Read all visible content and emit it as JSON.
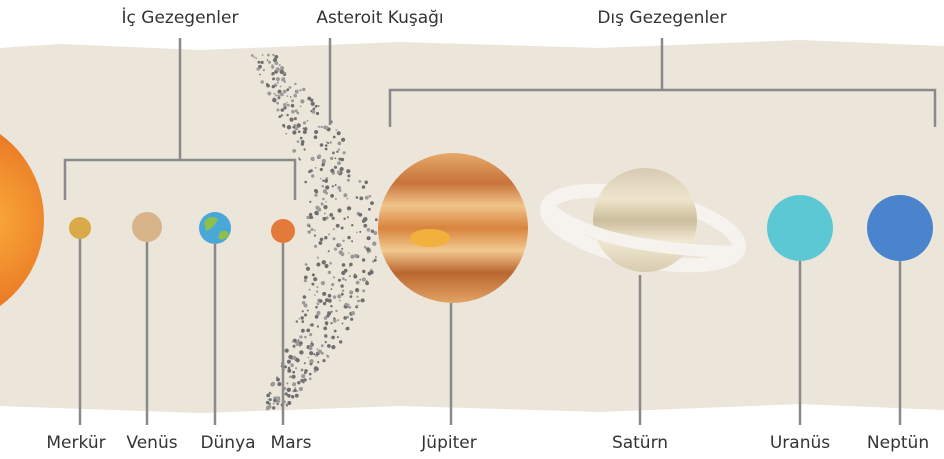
{
  "groups": [
    {
      "label": "İç Gezegenler"
    },
    {
      "label": "Asteroit Kuşağı"
    },
    {
      "label": "Dış Gezegenler"
    }
  ],
  "planets": [
    {
      "label": "Merkür"
    },
    {
      "label": "Venüs"
    },
    {
      "label": "Dünya"
    },
    {
      "label": "Mars"
    },
    {
      "label": "Jüpiter"
    },
    {
      "label": "Satürn"
    },
    {
      "label": "Uranüs"
    },
    {
      "label": "Neptün"
    }
  ]
}
